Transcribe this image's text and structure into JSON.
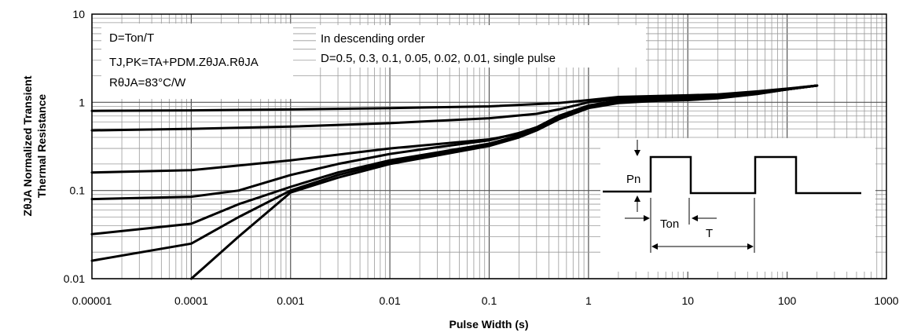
{
  "chart_data": {
    "type": "line",
    "xlabel": "Pulse Width (s)",
    "ylabel_line1": "ZθJA Normalized Transient",
    "ylabel_line2": "Thermal Resistance",
    "xscale": "log",
    "yscale": "log",
    "xlim": [
      1e-05,
      1000
    ],
    "ylim": [
      0.01,
      10
    ],
    "grid": true,
    "x_ticks": [
      "0.00001",
      "0.0001",
      "0.001",
      "0.01",
      "0.1",
      "1",
      "10",
      "100",
      "1000"
    ],
    "y_ticks": [
      "0.01",
      "0.1",
      "1",
      "10"
    ],
    "annotations": {
      "duty": "D=Ton/T",
      "tj": "TJ,PK=TA+PDM.ZθJA.RθJA",
      "r": "RθJA=83°C/W",
      "order": "In descending order",
      "values": "D=0.5, 0.3, 0.1, 0.05, 0.02, 0.01, single pulse"
    },
    "inset": {
      "pn": "Pn",
      "ton": "Ton",
      "t": "T"
    },
    "series": [
      {
        "x": [
          1e-05,
          0.0001,
          0.001,
          0.01,
          0.1,
          0.5,
          1,
          2,
          5,
          10,
          20,
          50,
          100,
          200
        ],
        "y": [
          0.8,
          0.81,
          0.83,
          0.86,
          0.9,
          0.98,
          1.06,
          1.15,
          1.18,
          1.2,
          1.23,
          1.33,
          1.43,
          1.55
        ]
      },
      {
        "x": [
          1e-05,
          0.0001,
          0.001,
          0.01,
          0.1,
          0.3,
          0.5,
          1,
          2,
          5,
          10,
          20,
          50,
          100,
          200
        ],
        "y": [
          0.48,
          0.5,
          0.53,
          0.58,
          0.66,
          0.74,
          0.83,
          1.0,
          1.1,
          1.15,
          1.17,
          1.2,
          1.3,
          1.42,
          1.55
        ]
      },
      {
        "x": [
          1e-05,
          0.0001,
          0.001,
          0.01,
          0.1,
          0.2,
          0.3,
          0.5,
          1,
          2,
          5,
          10,
          20,
          50,
          100,
          200
        ],
        "y": [
          0.16,
          0.17,
          0.22,
          0.3,
          0.38,
          0.44,
          0.52,
          0.7,
          0.92,
          1.05,
          1.1,
          1.12,
          1.17,
          1.28,
          1.4,
          1.55
        ]
      },
      {
        "x": [
          1e-05,
          0.0001,
          0.0003,
          0.001,
          0.003,
          0.01,
          0.03,
          0.1,
          0.2,
          0.3,
          0.5,
          1,
          2,
          5,
          10,
          20,
          50,
          100,
          200
        ],
        "y": [
          0.08,
          0.085,
          0.1,
          0.15,
          0.2,
          0.26,
          0.31,
          0.37,
          0.45,
          0.52,
          0.68,
          0.9,
          1.03,
          1.08,
          1.1,
          1.15,
          1.27,
          1.4,
          1.55
        ]
      },
      {
        "x": [
          1e-05,
          0.0001,
          0.0003,
          0.001,
          0.003,
          0.01,
          0.03,
          0.1,
          0.2,
          0.3,
          0.5,
          1,
          2,
          5,
          10,
          20,
          50,
          100,
          200
        ],
        "y": [
          0.032,
          0.042,
          0.07,
          0.11,
          0.16,
          0.22,
          0.27,
          0.34,
          0.42,
          0.5,
          0.66,
          0.88,
          1.0,
          1.06,
          1.08,
          1.13,
          1.26,
          1.4,
          1.55
        ]
      },
      {
        "x": [
          1e-05,
          0.0001,
          0.0003,
          0.001,
          0.003,
          0.01,
          0.03,
          0.1,
          0.2,
          0.3,
          0.5,
          1,
          2,
          5,
          10,
          20,
          50,
          100,
          200
        ],
        "y": [
          0.016,
          0.025,
          0.05,
          0.1,
          0.15,
          0.21,
          0.26,
          0.33,
          0.41,
          0.49,
          0.65,
          0.87,
          0.99,
          1.05,
          1.07,
          1.12,
          1.25,
          1.4,
          1.55
        ]
      },
      {
        "x": [
          0.0001,
          0.0003,
          0.001,
          0.003,
          0.01,
          0.03,
          0.1,
          0.2,
          0.3,
          0.5,
          1,
          2,
          5,
          10,
          20,
          50,
          100,
          200
        ],
        "y": [
          0.01,
          0.03,
          0.095,
          0.14,
          0.2,
          0.25,
          0.32,
          0.4,
          0.48,
          0.64,
          0.86,
          0.98,
          1.04,
          1.06,
          1.11,
          1.24,
          1.4,
          1.55
        ]
      }
    ]
  }
}
